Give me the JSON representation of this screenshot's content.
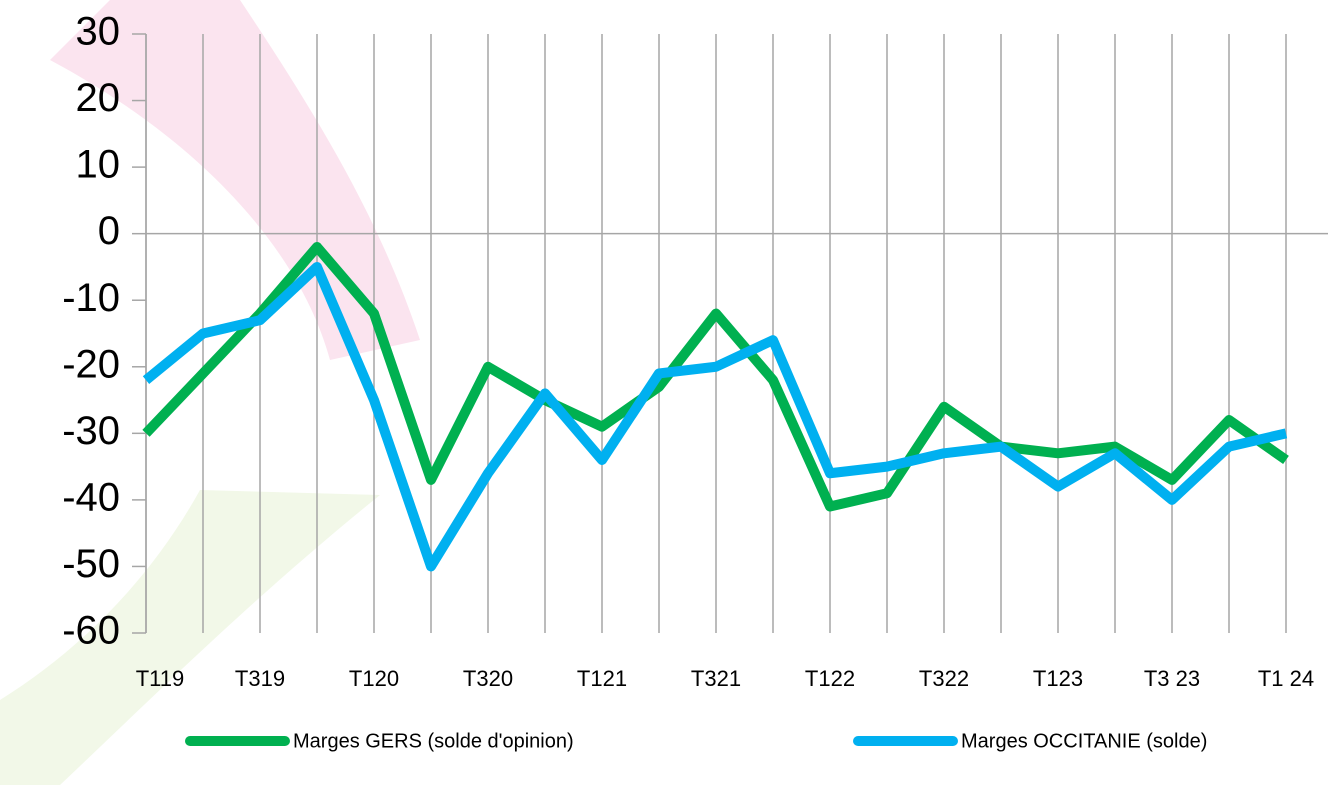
{
  "chart_data": {
    "type": "line",
    "categories": [
      "T119",
      null,
      "T319",
      null,
      "T120",
      null,
      "T320",
      null,
      "T121",
      null,
      "T321",
      null,
      "T122",
      null,
      "T322",
      null,
      "T123",
      null,
      "T3 23",
      null,
      "T1 24"
    ],
    "series": [
      {
        "name": "Marges GERS  (solde d'opinion)",
        "color": "#00b050",
        "values": [
          -30,
          -21,
          -12,
          -2,
          -12,
          -37,
          -20,
          -25,
          -29,
          -23,
          -12,
          -22,
          -41,
          -39,
          -26,
          -32,
          -33,
          -32,
          -37,
          -28,
          -34
        ]
      },
      {
        "name": "Marges OCCITANIE (solde)",
        "color": "#00b0f0",
        "values": [
          -22,
          -15,
          -13,
          -5,
          -25,
          -50,
          -36,
          -24,
          -34,
          -21,
          -20,
          -16,
          -36,
          -35,
          -33,
          -32,
          -38,
          -33,
          -40,
          -32,
          -30
        ]
      }
    ],
    "ylim": [
      -60,
      30
    ],
    "yticks": [
      -60,
      -50,
      -40,
      -30,
      -20,
      -10,
      0,
      10,
      20,
      30
    ],
    "grid": true
  }
}
